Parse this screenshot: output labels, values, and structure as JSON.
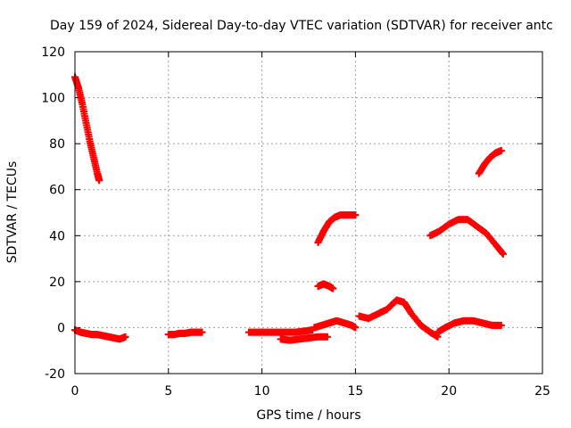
{
  "chart_data": {
    "type": "scatter",
    "title": "Day 159 of 2024, Sidereal Day-to-day VTEC variation (SDTVAR) for receiver antc",
    "xlabel": "GPS time / hours",
    "ylabel": "SDTVAR / TECUs",
    "xlim": [
      0,
      25
    ],
    "ylim": [
      -20,
      120
    ],
    "x_ticks": [
      0,
      5,
      10,
      15,
      20,
      25
    ],
    "y_ticks": [
      -20,
      0,
      20,
      40,
      60,
      80,
      100,
      120
    ],
    "grid": true,
    "legend": "none",
    "marker": "plus",
    "series_color": "#ff0000",
    "series": [
      {
        "name": "seg1",
        "x": [
          0.0,
          0.2,
          0.4,
          0.6,
          0.8,
          1.0,
          1.2,
          1.3
        ],
        "y": [
          109,
          104,
          97,
          89,
          81,
          74,
          67,
          64
        ]
      },
      {
        "name": "seg2",
        "x": [
          0.0,
          0.3,
          0.6,
          0.9,
          1.2,
          1.5,
          1.8,
          2.1,
          2.4,
          2.7
        ],
        "y": [
          -1,
          -2,
          -2.5,
          -3,
          -3,
          -3.5,
          -4,
          -4.5,
          -5,
          -4
        ]
      },
      {
        "name": "seg3",
        "x": [
          5.0,
          5.3,
          5.6,
          5.9,
          6.2,
          6.5,
          6.8
        ],
        "y": [
          -3,
          -3,
          -2.5,
          -2.5,
          -2,
          -2,
          -2
        ]
      },
      {
        "name": "seg4",
        "x": [
          9.3,
          9.8,
          10.3,
          10.8,
          11.3,
          11.8,
          12.3,
          12.7
        ],
        "y": [
          -2,
          -2,
          -2,
          -2,
          -2,
          -2,
          -1.5,
          -1
        ]
      },
      {
        "name": "seg5",
        "x": [
          11.0,
          11.5,
          12.0,
          12.5,
          13.0,
          13.5
        ],
        "y": [
          -5,
          -5.5,
          -5,
          -4.5,
          -4,
          -4
        ]
      },
      {
        "name": "seg6",
        "x": [
          12.8,
          13.2,
          13.6,
          14.0,
          14.4,
          14.8,
          15.0
        ],
        "y": [
          0,
          1,
          2,
          3,
          2,
          1,
          0
        ]
      },
      {
        "name": "seg7",
        "x": [
          13.0,
          13.3,
          13.6,
          13.9,
          14.2,
          14.6,
          15.0
        ],
        "y": [
          37,
          42,
          46,
          48,
          49,
          49,
          49
        ]
      },
      {
        "name": "seg8",
        "x": [
          13.0,
          13.3,
          13.6,
          13.8
        ],
        "y": [
          18,
          19,
          18,
          17
        ]
      },
      {
        "name": "seg9",
        "x": [
          15.2,
          15.7,
          16.2,
          16.7,
          17.2,
          17.6,
          18.0,
          18.5,
          19.0,
          19.4
        ],
        "y": [
          5,
          4,
          6,
          8,
          12,
          11,
          6,
          1,
          -2,
          -4
        ]
      },
      {
        "name": "seg10",
        "x": [
          19.4,
          19.8,
          20.3,
          20.8,
          21.3,
          21.8,
          22.3,
          22.8
        ],
        "y": [
          -2,
          0,
          2,
          3,
          3,
          2,
          1,
          1
        ]
      },
      {
        "name": "seg11",
        "x": [
          19.0,
          19.5,
          20.0,
          20.5,
          21.0,
          21.5,
          22.0,
          22.5,
          22.9
        ],
        "y": [
          40,
          42,
          45,
          47,
          47,
          44,
          41,
          36,
          32
        ]
      },
      {
        "name": "seg12",
        "x": [
          21.6,
          21.9,
          22.2,
          22.5,
          22.8
        ],
        "y": [
          67,
          71,
          74,
          76,
          77
        ]
      }
    ]
  }
}
